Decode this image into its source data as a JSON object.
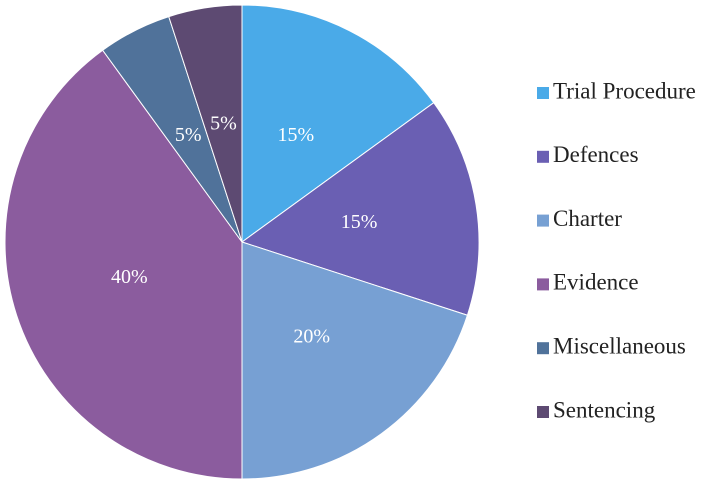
{
  "chart_data": {
    "type": "pie",
    "categories": [
      "Trial Procedure",
      "Defences",
      "Charter",
      "Evidence",
      "Miscellaneous",
      "Sentencing"
    ],
    "values": [
      15,
      15,
      20,
      40,
      5,
      5
    ],
    "value_labels": [
      "15%",
      "15%",
      "20%",
      "40%",
      "5%",
      "5%"
    ],
    "colors": [
      "#4aaae8",
      "#6a5fb3",
      "#77a0d3",
      "#8b5c9e",
      "#50729a",
      "#5d4a72"
    ],
    "legend": "right"
  }
}
